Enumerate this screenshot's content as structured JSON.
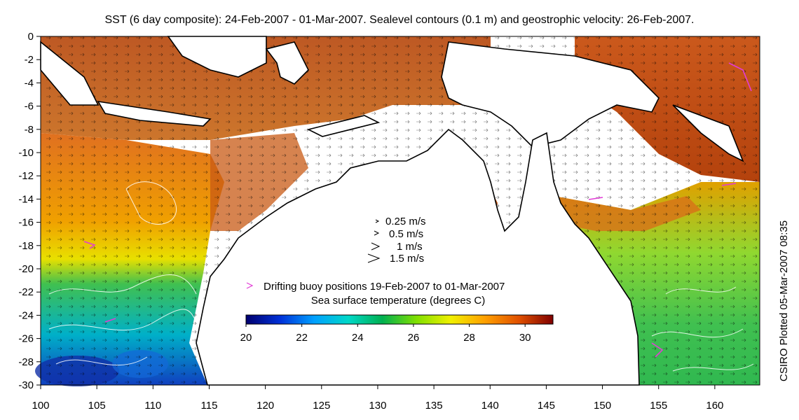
{
  "title": "SST (6 day composite): 24-Feb-2007 - 01-Mar-2007. Sealevel contours (0.1 m) and geostrophic velocity: 26-Feb-2007.",
  "credit": "CSIRO Plotted 05-Mar-2007 08:35",
  "axes": {
    "x_ticks": [
      "100",
      "105",
      "110",
      "115",
      "120",
      "125",
      "130",
      "135",
      "140",
      "145",
      "150",
      "155",
      "160"
    ],
    "y_ticks": [
      "0",
      "-2",
      "-4",
      "-6",
      "-8",
      "-10",
      "-12",
      "-14",
      "-16",
      "-18",
      "-20",
      "-22",
      "-24",
      "-26",
      "-28",
      "-30"
    ],
    "lon_range": [
      100,
      164
    ],
    "lat_range": [
      -30,
      0
    ]
  },
  "velocity_legend": {
    "items": [
      "0.25 m/s",
      "0.5 m/s",
      "1 m/s",
      "1.5 m/s"
    ],
    "values": [
      0.25,
      0.5,
      1,
      1.5
    ]
  },
  "buoy_legend": {
    "text": "Drifting buoy positions 19-Feb-2007 to 01-Mar-2007",
    "color": "#e23bd6"
  },
  "colorbar": {
    "title": "Sea surface temperature (degrees C)",
    "ticks": [
      "20",
      "22",
      "24",
      "26",
      "28",
      "30"
    ],
    "range": [
      20,
      31
    ],
    "colors": [
      "#00006e",
      "#0030d8",
      "#00a0ff",
      "#00d8c8",
      "#00b050",
      "#80e000",
      "#f0f000",
      "#ffa000",
      "#e05000",
      "#800000"
    ]
  },
  "colors": {
    "land_outline": "#000000",
    "contour": "#ffffff"
  }
}
